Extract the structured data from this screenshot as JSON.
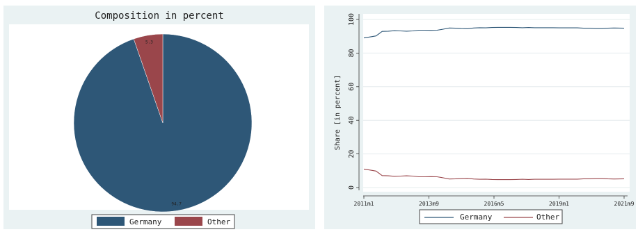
{
  "colors": {
    "germany": "#2e5777",
    "other": "#9a464b",
    "panel_bg": "#eaf2f3",
    "plot_bg": "#ffffff"
  },
  "chart_data": [
    {
      "type": "pie",
      "title": "Composition in percent",
      "slices": [
        {
          "name": "Germany",
          "value": 94.7,
          "label": "94.7"
        },
        {
          "name": "Other",
          "value": 5.3,
          "label": "5.3"
        }
      ],
      "legend": {
        "position": "bottom",
        "entries": [
          "Germany",
          "Other"
        ]
      }
    },
    {
      "type": "line",
      "title": "",
      "xlabel": "",
      "ylabel": "Share [in percent]",
      "ylim": [
        0,
        100
      ],
      "yticks": [
        "0",
        "20",
        "40",
        "60",
        "80",
        "100"
      ],
      "xticks": [
        "2011m1",
        "2013m9",
        "2016m5",
        "2019m1",
        "2021m9"
      ],
      "xlim": [
        "2011m1",
        "2021m9"
      ],
      "grid": true,
      "x": [
        "2011m1",
        "2011m4",
        "2011m7",
        "2011m10",
        "2012m1",
        "2012m4",
        "2012m7",
        "2012m10",
        "2013m1",
        "2013m4",
        "2013m7",
        "2013m10",
        "2014m1",
        "2014m4",
        "2014m7",
        "2014m10",
        "2015m1",
        "2015m4",
        "2015m7",
        "2015m10",
        "2016m1",
        "2016m4",
        "2016m7",
        "2016m10",
        "2017m1",
        "2017m4",
        "2017m7",
        "2017m10",
        "2018m1",
        "2018m4",
        "2018m7",
        "2018m10",
        "2019m1",
        "2019m4",
        "2019m7",
        "2019m10",
        "2020m1",
        "2020m4",
        "2020m7",
        "2020m10",
        "2021m1",
        "2021m4",
        "2021m9"
      ],
      "series": [
        {
          "name": "Germany",
          "values": [
            89.0,
            89.6,
            90.2,
            92.9,
            93.0,
            93.3,
            93.2,
            93.0,
            93.2,
            93.6,
            93.6,
            93.5,
            93.6,
            94.2,
            94.9,
            94.8,
            94.6,
            94.5,
            94.9,
            95.1,
            95.0,
            95.2,
            95.3,
            95.3,
            95.3,
            95.2,
            95.1,
            95.2,
            95.1,
            95.1,
            95.1,
            95.1,
            95.0,
            95.0,
            95.0,
            95.0,
            94.8,
            94.8,
            94.6,
            94.6,
            94.8,
            94.9,
            94.8
          ]
        },
        {
          "name": "Other",
          "values": [
            11.0,
            10.4,
            9.8,
            7.1,
            7.0,
            6.7,
            6.8,
            7.0,
            6.8,
            6.4,
            6.4,
            6.5,
            6.4,
            5.8,
            5.1,
            5.2,
            5.4,
            5.5,
            5.1,
            4.9,
            5.0,
            4.8,
            4.7,
            4.7,
            4.7,
            4.8,
            4.9,
            4.8,
            4.9,
            4.9,
            4.9,
            4.9,
            5.0,
            5.0,
            5.0,
            5.0,
            5.2,
            5.2,
            5.4,
            5.4,
            5.2,
            5.1,
            5.2
          ]
        }
      ],
      "legend": {
        "position": "bottom",
        "entries": [
          "Germany",
          "Other"
        ]
      }
    }
  ]
}
